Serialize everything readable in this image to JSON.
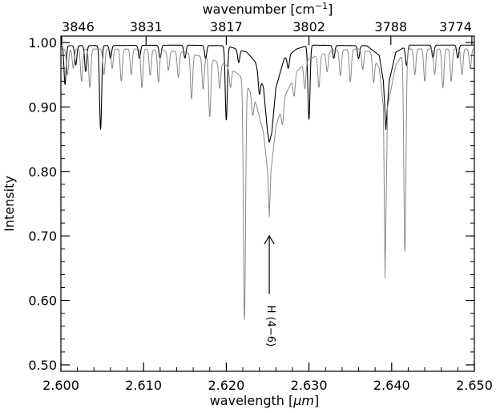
{
  "chart_data": {
    "type": "line",
    "title": "",
    "xlabel_prefix": "wavelength [",
    "xlabel_unit": "μm",
    "xlabel_suffix": "]",
    "top_xlabel_prefix": "wavenumber [cm",
    "top_xlabel_exp": "−1",
    "top_xlabel_suffix": "]",
    "ylabel": "Intensity",
    "xlim": [
      2.6,
      2.65
    ],
    "ylim": [
      0.49,
      1.01
    ],
    "x_ticks": [
      2.6,
      2.61,
      2.62,
      2.63,
      2.64,
      2.65
    ],
    "x_tick_labels": [
      "2.600",
      "2.610",
      "2.620",
      "2.630",
      "2.640",
      "2.650"
    ],
    "y_ticks": [
      0.5,
      0.6,
      0.7,
      0.8,
      0.9,
      1.0
    ],
    "y_tick_labels": [
      "0.50",
      "0.60",
      "0.70",
      "0.80",
      "0.90",
      "1.00"
    ],
    "top_ticks_wavelength": [
      2.6001,
      2.6103,
      2.62,
      2.63,
      2.6399,
      2.6497
    ],
    "top_tick_labels": [
      "3846",
      "3831",
      "3817",
      "3802",
      "3788",
      "3774"
    ],
    "grid": false,
    "series": [
      {
        "color": "#000000",
        "continuum": [
          [
            2.6,
            0.995
          ],
          [
            2.615,
            0.996
          ],
          [
            2.62,
            0.995
          ],
          [
            2.6225,
            0.985
          ],
          [
            2.6235,
            0.97
          ],
          [
            2.6245,
            0.93
          ],
          [
            2.625,
            0.86
          ],
          [
            2.6252,
            0.845
          ],
          [
            2.6255,
            0.86
          ],
          [
            2.626,
            0.93
          ],
          [
            2.627,
            0.975
          ],
          [
            2.6285,
            0.99
          ],
          [
            2.63,
            0.996
          ],
          [
            2.637,
            0.995
          ],
          [
            2.6385,
            0.98
          ],
          [
            2.639,
            0.94
          ],
          [
            2.6393,
            0.865
          ],
          [
            2.6397,
            0.94
          ],
          [
            2.6405,
            0.985
          ],
          [
            2.642,
            0.996
          ],
          [
            2.65,
            0.996
          ]
        ],
        "lines": [
          {
            "x": 2.6005,
            "depth": 0.06
          },
          {
            "x": 2.6018,
            "depth": 0.03
          },
          {
            "x": 2.603,
            "depth": 0.04
          },
          {
            "x": 2.6048,
            "depth": 0.13
          },
          {
            "x": 2.606,
            "depth": 0.02
          },
          {
            "x": 2.6095,
            "depth": 0.02
          },
          {
            "x": 2.612,
            "depth": 0.02
          },
          {
            "x": 2.615,
            "depth": 0.02
          },
          {
            "x": 2.6175,
            "depth": 0.02
          },
          {
            "x": 2.62,
            "depth": 0.115
          },
          {
            "x": 2.6215,
            "depth": 0.02
          },
          {
            "x": 2.624,
            "depth": 0.03
          },
          {
            "x": 2.6275,
            "depth": 0.02
          },
          {
            "x": 2.63,
            "depth": 0.115
          },
          {
            "x": 2.633,
            "depth": 0.02
          },
          {
            "x": 2.636,
            "depth": 0.02
          },
          {
            "x": 2.6418,
            "depth": 0.03
          },
          {
            "x": 2.645,
            "depth": 0.02
          },
          {
            "x": 2.648,
            "depth": 0.02
          }
        ]
      },
      {
        "color": "#888888",
        "continuum": [
          [
            2.6,
            0.99
          ],
          [
            2.61,
            0.99
          ],
          [
            2.615,
            0.985
          ],
          [
            2.618,
            0.975
          ],
          [
            2.62,
            0.965
          ],
          [
            2.622,
            0.945
          ],
          [
            2.6235,
            0.91
          ],
          [
            2.6245,
            0.86
          ],
          [
            2.625,
            0.8
          ],
          [
            2.6252,
            0.73
          ],
          [
            2.6254,
            0.8
          ],
          [
            2.626,
            0.87
          ],
          [
            2.6272,
            0.92
          ],
          [
            2.6285,
            0.955
          ],
          [
            2.63,
            0.975
          ],
          [
            2.633,
            0.988
          ],
          [
            2.636,
            0.99
          ],
          [
            2.6375,
            0.985
          ],
          [
            2.6385,
            0.96
          ],
          [
            2.639,
            0.9
          ],
          [
            2.6392,
            0.635
          ],
          [
            2.6395,
            0.9
          ],
          [
            2.6405,
            0.965
          ],
          [
            2.6415,
            0.985
          ],
          [
            2.642,
            0.99
          ],
          [
            2.65,
            0.99
          ]
        ],
        "lines": [
          {
            "x": 2.6008,
            "depth": 0.04
          },
          {
            "x": 2.6015,
            "depth": 0.03
          },
          {
            "x": 2.6025,
            "depth": 0.05
          },
          {
            "x": 2.6035,
            "depth": 0.06
          },
          {
            "x": 2.6052,
            "depth": 0.04
          },
          {
            "x": 2.6062,
            "depth": 0.03
          },
          {
            "x": 2.6073,
            "depth": 0.05
          },
          {
            "x": 2.6085,
            "depth": 0.04
          },
          {
            "x": 2.6098,
            "depth": 0.06
          },
          {
            "x": 2.6108,
            "depth": 0.04
          },
          {
            "x": 2.6118,
            "depth": 0.05
          },
          {
            "x": 2.613,
            "depth": 0.03
          },
          {
            "x": 2.6142,
            "depth": 0.04
          },
          {
            "x": 2.6158,
            "depth": 0.07
          },
          {
            "x": 2.6172,
            "depth": 0.05
          },
          {
            "x": 2.618,
            "depth": 0.09
          },
          {
            "x": 2.6192,
            "depth": 0.04
          },
          {
            "x": 2.6205,
            "depth": 0.03
          },
          {
            "x": 2.6222,
            "depth": 0.37
          },
          {
            "x": 2.6232,
            "depth": 0.03
          },
          {
            "x": 2.6268,
            "depth": 0.03
          },
          {
            "x": 2.6282,
            "depth": 0.03
          },
          {
            "x": 2.6295,
            "depth": 0.04
          },
          {
            "x": 2.6312,
            "depth": 0.05
          },
          {
            "x": 2.6322,
            "depth": 0.03
          },
          {
            "x": 2.6338,
            "depth": 0.04
          },
          {
            "x": 2.635,
            "depth": 0.05
          },
          {
            "x": 2.6365,
            "depth": 0.03
          },
          {
            "x": 2.6378,
            "depth": 0.04
          },
          {
            "x": 2.6416,
            "depth": 0.31
          },
          {
            "x": 2.6428,
            "depth": 0.04
          },
          {
            "x": 2.644,
            "depth": 0.05
          },
          {
            "x": 2.6452,
            "depth": 0.04
          },
          {
            "x": 2.6462,
            "depth": 0.06
          },
          {
            "x": 2.6472,
            "depth": 0.05
          },
          {
            "x": 2.6485,
            "depth": 0.04
          },
          {
            "x": 2.6495,
            "depth": 0.03
          }
        ]
      }
    ],
    "annotation": {
      "text": "H (4−6)",
      "arrow_x": 2.6252,
      "arrow_tip_y": 0.7,
      "arrow_base_y": 0.61
    }
  }
}
